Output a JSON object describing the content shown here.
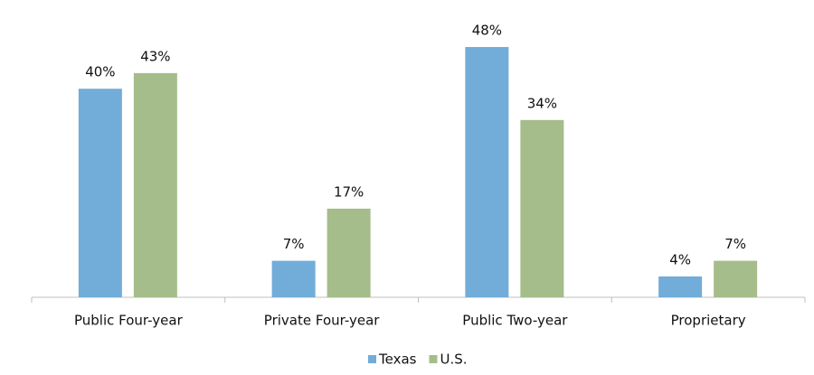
{
  "chart_data": {
    "type": "bar",
    "categories": [
      "Public Four-year",
      "Private Four-year",
      "Public Two-year",
      "Proprietary"
    ],
    "series": [
      {
        "name": "Texas",
        "color": "#72acd9",
        "values": [
          40,
          7,
          48,
          4
        ],
        "value_labels": [
          "40%",
          "7%",
          "48%",
          "4%"
        ]
      },
      {
        "name": "U.S.",
        "color": "#a5bd8a",
        "values": [
          43,
          17,
          34,
          7
        ],
        "value_labels": [
          "43%",
          "17%",
          "34%",
          "7%"
        ]
      }
    ],
    "legend": "bottom"
  }
}
